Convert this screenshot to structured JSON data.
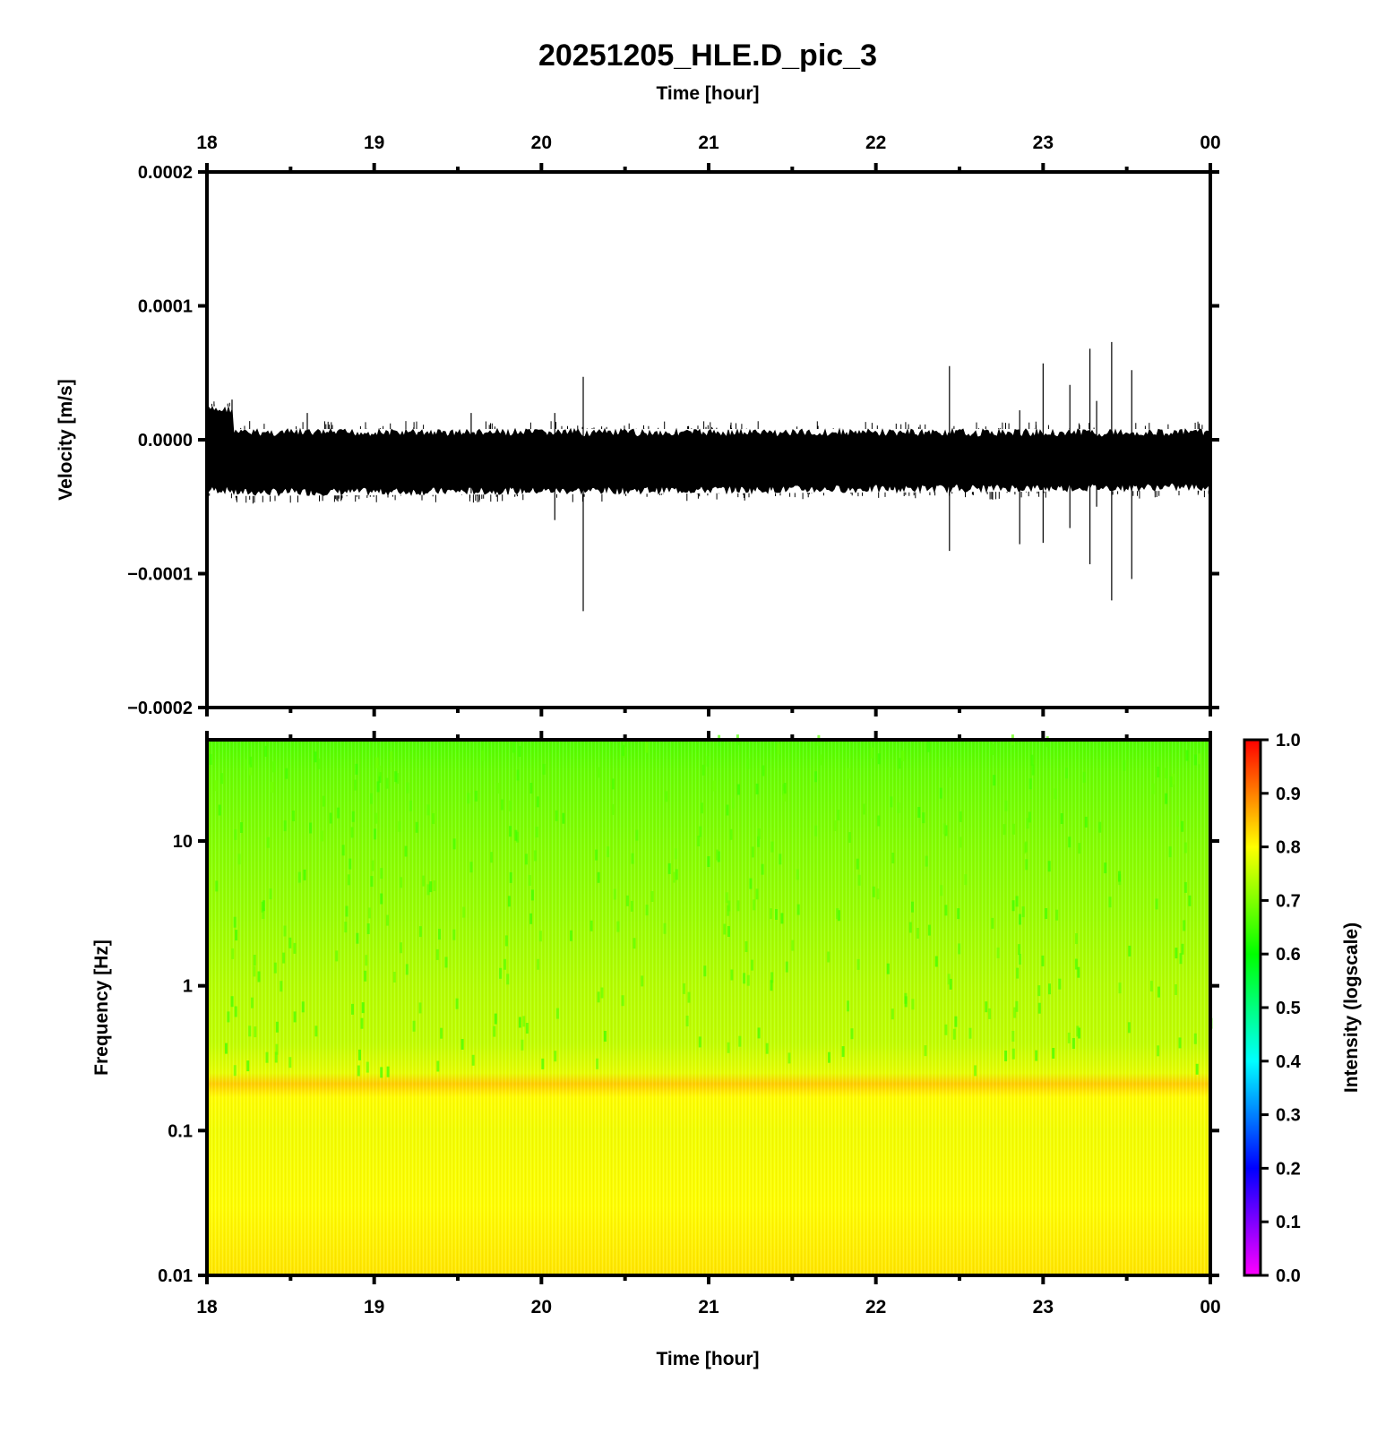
{
  "chart_data": [
    {
      "type": "line",
      "title": "20251205_HLE.D_pic_3",
      "xlabel": "Time [hour]",
      "ylabel": "Velocity [m/s]",
      "x_ticks": [
        "18",
        "19",
        "20",
        "21",
        "22",
        "23",
        "00"
      ],
      "xlim": [
        18,
        24
      ],
      "ylim": [
        -0.0002,
        0.0002
      ],
      "y_ticks": [
        "−0.0002",
        "−0.0001",
        "0.0000",
        "0.0001",
        "0.0002"
      ],
      "y_tick_values": [
        -0.0002,
        -0.0001,
        0,
        0.0001,
        0.0002
      ],
      "line_color": "#000000",
      "series": [
        {
          "noise_band": {
            "x": [
              18.0,
              18.15,
              18.16,
              24.0
            ],
            "upper": [
              2.5e-05,
              2.5e-05,
              8e-06,
              8e-06
            ],
            "lower": [
              -4e-05,
              -4e-05,
              -4.2e-05,
              -3.8e-05
            ]
          },
          "spikes": [
            {
              "x": 18.15,
              "max": 3e-05,
              "min": -3e-05
            },
            {
              "x": 18.6,
              "max": 2e-05,
              "min": -4e-05
            },
            {
              "x": 19.58,
              "max": 2e-05,
              "min": -4e-05
            },
            {
              "x": 20.08,
              "max": 2e-05,
              "min": -6e-05
            },
            {
              "x": 20.25,
              "max": 4.7e-05,
              "min": -0.000128
            },
            {
              "x": 22.44,
              "max": 5.5e-05,
              "min": -8.3e-05
            },
            {
              "x": 22.86,
              "max": 2.2e-05,
              "min": -7.8e-05
            },
            {
              "x": 23.0,
              "max": 5.7e-05,
              "min": -7.7e-05
            },
            {
              "x": 23.16,
              "max": 4.1e-05,
              "min": -6.6e-05
            },
            {
              "x": 23.28,
              "max": 6.8e-05,
              "min": -9.3e-05
            },
            {
              "x": 23.32,
              "max": 2.9e-05,
              "min": -5e-05
            },
            {
              "x": 23.41,
              "max": 7.3e-05,
              "min": -0.00012
            },
            {
              "x": 23.53,
              "max": 5.2e-05,
              "min": -0.000104
            }
          ]
        }
      ],
      "grid": false
    },
    {
      "type": "heatmap",
      "xlabel": "Time [hour]",
      "ylabel": "Frequency [Hz]",
      "x_ticks": [
        "18",
        "19",
        "20",
        "21",
        "22",
        "23",
        "00"
      ],
      "xlim": [
        18,
        24
      ],
      "y_scale": "log",
      "ylim": [
        0.01,
        50
      ],
      "y_ticks": [
        "0.01",
        "0.1",
        "1",
        "10"
      ],
      "y_tick_values": [
        0.01,
        0.1,
        1,
        10
      ],
      "colorbar": {
        "label": "Intensity (logscale)",
        "range": [
          0.0,
          1.0
        ],
        "ticks": [
          "0.0",
          "0.1",
          "0.2",
          "0.3",
          "0.4",
          "0.5",
          "0.6",
          "0.7",
          "0.8",
          "0.9",
          "1.0"
        ],
        "colormap": [
          "#ff00ff",
          "#8000ff",
          "#0000ff",
          "#0080ff",
          "#00ffff",
          "#00ff80",
          "#00ff00",
          "#80ff00",
          "#ffff00",
          "#ff8000",
          "#ff0000"
        ]
      },
      "intensity_profile": {
        "freq": [
          0.01,
          0.03,
          0.1,
          0.17,
          0.21,
          0.25,
          0.4,
          1.0,
          3.0,
          10.0,
          30.0,
          50.0
        ],
        "intensity": [
          0.82,
          0.8,
          0.79,
          0.8,
          0.84,
          0.78,
          0.75,
          0.74,
          0.72,
          0.7,
          0.68,
          0.66
        ]
      }
    }
  ]
}
